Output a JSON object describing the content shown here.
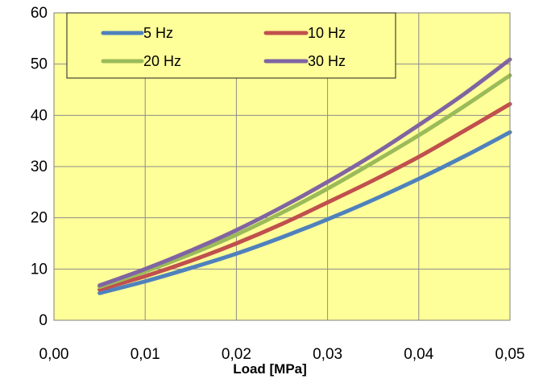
{
  "chart_data": {
    "type": "line",
    "xlabel": "Load [MPa]",
    "ylabel": "",
    "xlim": [
      0,
      0.05
    ],
    "ylim": [
      0,
      60
    ],
    "x_ticks": [
      "0,00",
      "0,01",
      "0,02",
      "0,03",
      "0,04",
      "0,05"
    ],
    "y_ticks": [
      "0",
      "10",
      "20",
      "30",
      "40",
      "50",
      "60"
    ],
    "grid": true,
    "legend_position": "top",
    "plot_background": "#FFFF99",
    "series": [
      {
        "name": "5 Hz",
        "color": "#4F81BD",
        "x": [
          0.005,
          0.01,
          0.015,
          0.02,
          0.025,
          0.03,
          0.035,
          0.04,
          0.045,
          0.05
        ],
        "y": [
          5.3,
          7.6,
          10.2,
          13.0,
          16.2,
          19.7,
          23.5,
          27.6,
          32.0,
          36.7
        ]
      },
      {
        "name": "10 Hz",
        "color": "#C0504D",
        "x": [
          0.005,
          0.01,
          0.015,
          0.02,
          0.025,
          0.03,
          0.035,
          0.04,
          0.045,
          0.05
        ],
        "y": [
          6.0,
          8.6,
          11.6,
          15.0,
          18.8,
          23.0,
          27.3,
          31.9,
          37.0,
          42.2
        ]
      },
      {
        "name": "20 Hz",
        "color": "#9BBB59",
        "x": [
          0.005,
          0.01,
          0.015,
          0.02,
          0.025,
          0.03,
          0.035,
          0.04,
          0.045,
          0.05
        ],
        "y": [
          6.5,
          9.5,
          12.9,
          16.7,
          21.0,
          25.7,
          30.8,
          36.1,
          41.8,
          47.8
        ]
      },
      {
        "name": "30 Hz",
        "color": "#8064A2",
        "x": [
          0.005,
          0.01,
          0.015,
          0.02,
          0.025,
          0.03,
          0.035,
          0.04,
          0.045,
          0.05
        ],
        "y": [
          6.8,
          10.0,
          13.6,
          17.6,
          22.1,
          27.0,
          32.3,
          38.1,
          44.2,
          50.9
        ]
      }
    ]
  }
}
